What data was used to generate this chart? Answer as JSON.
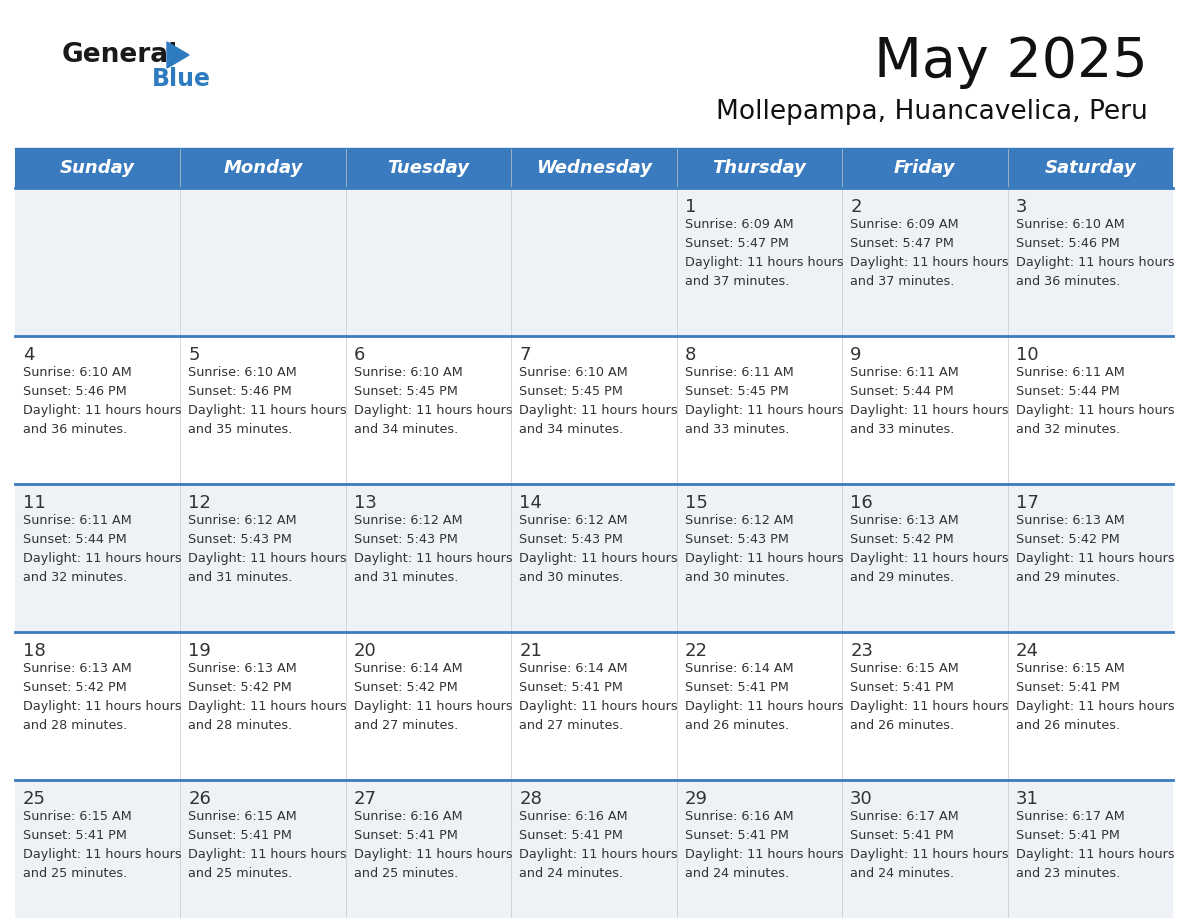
{
  "title": "May 2025",
  "subtitle": "Mollepampa, Huancavelica, Peru",
  "days_of_week": [
    "Sunday",
    "Monday",
    "Tuesday",
    "Wednesday",
    "Thursday",
    "Friday",
    "Saturday"
  ],
  "header_bg": "#3a7bbf",
  "header_text": "#ffffff",
  "cell_bg_odd": "#eef2f7",
  "cell_bg_even": "#ffffff",
  "row_line_color": "#3a7bbf",
  "text_color": "#333333",
  "logo_general_color": "#1a1a1a",
  "logo_blue_color": "#2e7bbf",
  "calendar_data": [
    [
      null,
      null,
      null,
      null,
      {
        "day": 1,
        "sunrise": "6:09 AM",
        "sunset": "5:47 PM",
        "daylight": "11 hours and 37 minutes"
      },
      {
        "day": 2,
        "sunrise": "6:09 AM",
        "sunset": "5:47 PM",
        "daylight": "11 hours and 37 minutes"
      },
      {
        "day": 3,
        "sunrise": "6:10 AM",
        "sunset": "5:46 PM",
        "daylight": "11 hours and 36 minutes"
      }
    ],
    [
      {
        "day": 4,
        "sunrise": "6:10 AM",
        "sunset": "5:46 PM",
        "daylight": "11 hours and 36 minutes"
      },
      {
        "day": 5,
        "sunrise": "6:10 AM",
        "sunset": "5:46 PM",
        "daylight": "11 hours and 35 minutes"
      },
      {
        "day": 6,
        "sunrise": "6:10 AM",
        "sunset": "5:45 PM",
        "daylight": "11 hours and 34 minutes"
      },
      {
        "day": 7,
        "sunrise": "6:10 AM",
        "sunset": "5:45 PM",
        "daylight": "11 hours and 34 minutes"
      },
      {
        "day": 8,
        "sunrise": "6:11 AM",
        "sunset": "5:45 PM",
        "daylight": "11 hours and 33 minutes"
      },
      {
        "day": 9,
        "sunrise": "6:11 AM",
        "sunset": "5:44 PM",
        "daylight": "11 hours and 33 minutes"
      },
      {
        "day": 10,
        "sunrise": "6:11 AM",
        "sunset": "5:44 PM",
        "daylight": "11 hours and 32 minutes"
      }
    ],
    [
      {
        "day": 11,
        "sunrise": "6:11 AM",
        "sunset": "5:44 PM",
        "daylight": "11 hours and 32 minutes"
      },
      {
        "day": 12,
        "sunrise": "6:12 AM",
        "sunset": "5:43 PM",
        "daylight": "11 hours and 31 minutes"
      },
      {
        "day": 13,
        "sunrise": "6:12 AM",
        "sunset": "5:43 PM",
        "daylight": "11 hours and 31 minutes"
      },
      {
        "day": 14,
        "sunrise": "6:12 AM",
        "sunset": "5:43 PM",
        "daylight": "11 hours and 30 minutes"
      },
      {
        "day": 15,
        "sunrise": "6:12 AM",
        "sunset": "5:43 PM",
        "daylight": "11 hours and 30 minutes"
      },
      {
        "day": 16,
        "sunrise": "6:13 AM",
        "sunset": "5:42 PM",
        "daylight": "11 hours and 29 minutes"
      },
      {
        "day": 17,
        "sunrise": "6:13 AM",
        "sunset": "5:42 PM",
        "daylight": "11 hours and 29 minutes"
      }
    ],
    [
      {
        "day": 18,
        "sunrise": "6:13 AM",
        "sunset": "5:42 PM",
        "daylight": "11 hours and 28 minutes"
      },
      {
        "day": 19,
        "sunrise": "6:13 AM",
        "sunset": "5:42 PM",
        "daylight": "11 hours and 28 minutes"
      },
      {
        "day": 20,
        "sunrise": "6:14 AM",
        "sunset": "5:42 PM",
        "daylight": "11 hours and 27 minutes"
      },
      {
        "day": 21,
        "sunrise": "6:14 AM",
        "sunset": "5:41 PM",
        "daylight": "11 hours and 27 minutes"
      },
      {
        "day": 22,
        "sunrise": "6:14 AM",
        "sunset": "5:41 PM",
        "daylight": "11 hours and 26 minutes"
      },
      {
        "day": 23,
        "sunrise": "6:15 AM",
        "sunset": "5:41 PM",
        "daylight": "11 hours and 26 minutes"
      },
      {
        "day": 24,
        "sunrise": "6:15 AM",
        "sunset": "5:41 PM",
        "daylight": "11 hours and 26 minutes"
      }
    ],
    [
      {
        "day": 25,
        "sunrise": "6:15 AM",
        "sunset": "5:41 PM",
        "daylight": "11 hours and 25 minutes"
      },
      {
        "day": 26,
        "sunrise": "6:15 AM",
        "sunset": "5:41 PM",
        "daylight": "11 hours and 25 minutes"
      },
      {
        "day": 27,
        "sunrise": "6:16 AM",
        "sunset": "5:41 PM",
        "daylight": "11 hours and 25 minutes"
      },
      {
        "day": 28,
        "sunrise": "6:16 AM",
        "sunset": "5:41 PM",
        "daylight": "11 hours and 24 minutes"
      },
      {
        "day": 29,
        "sunrise": "6:16 AM",
        "sunset": "5:41 PM",
        "daylight": "11 hours and 24 minutes"
      },
      {
        "day": 30,
        "sunrise": "6:17 AM",
        "sunset": "5:41 PM",
        "daylight": "11 hours and 24 minutes"
      },
      {
        "day": 31,
        "sunrise": "6:17 AM",
        "sunset": "5:41 PM",
        "daylight": "11 hours and 23 minutes"
      }
    ]
  ]
}
